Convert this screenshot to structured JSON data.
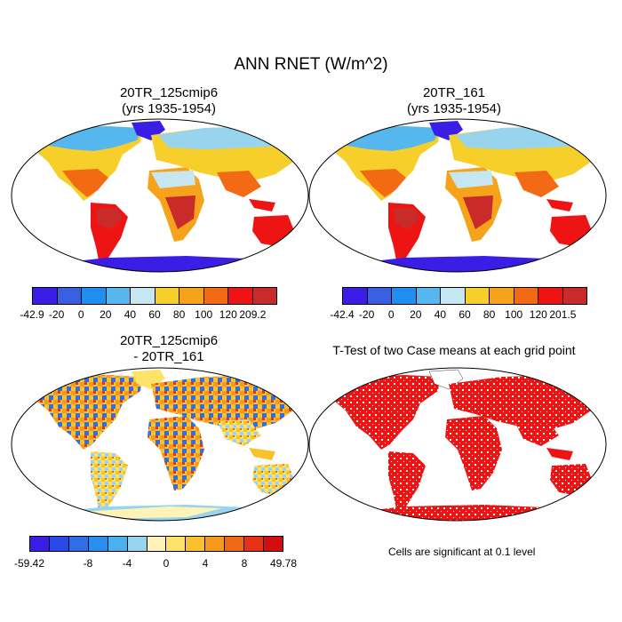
{
  "title": "ANN RNET (W/m^2)",
  "panels": [
    {
      "title": "20TR_125cmip6",
      "subtitle": "(yrs 1935-1954)"
    },
    {
      "title": "20TR_161",
      "subtitle": "(yrs 1935-1954)"
    },
    {
      "title": "20TR_125cmip6",
      "subtitle": "- 20TR_161"
    },
    {
      "title": "T-Test of two Case means at each grid point",
      "subtitle": ""
    }
  ],
  "colorbars": {
    "top": {
      "colors": [
        "#3a1ee6",
        "#3960e0",
        "#1f8ef0",
        "#56b6ee",
        "#c6e6f2",
        "#f6cf2a",
        "#f7a21b",
        "#f26a13",
        "#ee1414",
        "#c92a2a"
      ],
      "labels_left": [
        "-42.9",
        "-20",
        "0",
        "20",
        "40",
        "60",
        "80",
        "100",
        "120",
        "209.2"
      ],
      "labels_right": [
        "-42.4",
        "-20",
        "0",
        "20",
        "40",
        "60",
        "80",
        "100",
        "120",
        "201.5"
      ]
    },
    "diff": {
      "colors": [
        "#3a1ee6",
        "#2b48ea",
        "#2e6ee8",
        "#2a8ef0",
        "#4ab0f0",
        "#98d4ee",
        "#fff3b8",
        "#fde36a",
        "#f9c22c",
        "#f69a1c",
        "#f06a16",
        "#e83218",
        "#d40e0e"
      ],
      "labels": [
        "-59.42",
        "-8",
        "-4",
        "0",
        "4",
        "8",
        "49.78"
      ]
    }
  },
  "note": "Cells are significant at 0.1 level"
}
